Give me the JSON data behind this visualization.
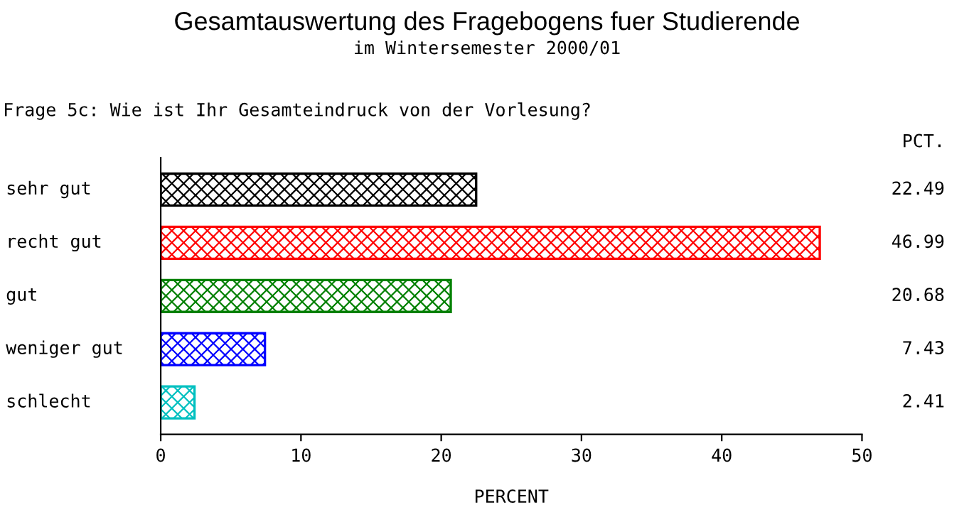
{
  "chart_data": {
    "type": "bar",
    "orientation": "horizontal",
    "title": "Gesamtauswertung des Fragebogens fuer Studierende",
    "subtitle": "im Wintersemester 2000/01",
    "annotations": [
      "Frage 5c: Wie ist Ihr Gesamteindruck von der Vorlesung?",
      "PCT."
    ],
    "categories": [
      "sehr gut",
      "recht gut",
      "gut",
      "weniger gut",
      "schlecht"
    ],
    "values": [
      22.49,
      46.99,
      20.68,
      7.43,
      2.41
    ],
    "colors": [
      "#000000",
      "#ff0000",
      "#008000",
      "#0000ff",
      "#00c0c0"
    ],
    "xlabel": "PERCENT",
    "xlim": [
      0,
      50
    ],
    "xticks": [
      0,
      10,
      20,
      30,
      40,
      50
    ],
    "data_labels": true,
    "grid": false
  }
}
